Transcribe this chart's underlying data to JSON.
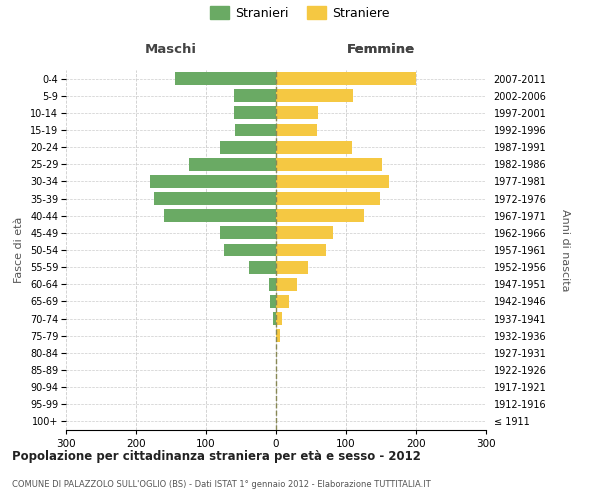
{
  "age_groups": [
    "100+",
    "95-99",
    "90-94",
    "85-89",
    "80-84",
    "75-79",
    "70-74",
    "65-69",
    "60-64",
    "55-59",
    "50-54",
    "45-49",
    "40-44",
    "35-39",
    "30-34",
    "25-29",
    "20-24",
    "15-19",
    "10-14",
    "5-9",
    "0-4"
  ],
  "birth_years": [
    "≤ 1911",
    "1912-1916",
    "1917-1921",
    "1922-1926",
    "1927-1931",
    "1932-1936",
    "1937-1941",
    "1942-1946",
    "1947-1951",
    "1952-1956",
    "1957-1961",
    "1962-1966",
    "1967-1971",
    "1972-1976",
    "1977-1981",
    "1982-1986",
    "1987-1991",
    "1992-1996",
    "1997-2001",
    "2002-2006",
    "2007-2011"
  ],
  "males": [
    0,
    0,
    0,
    0,
    0,
    0,
    4,
    8,
    10,
    38,
    75,
    80,
    160,
    175,
    180,
    125,
    80,
    58,
    60,
    60,
    145
  ],
  "females": [
    0,
    0,
    0,
    0,
    0,
    5,
    8,
    18,
    30,
    45,
    72,
    82,
    125,
    148,
    162,
    152,
    108,
    58,
    60,
    110,
    200
  ],
  "male_color": "#6aaa64",
  "female_color": "#f5c842",
  "title": "Popolazione per cittadinanza straniera per età e sesso - 2012",
  "subtitle": "COMUNE DI PALAZZOLO SULL'OGLIO (BS) - Dati ISTAT 1° gennaio 2012 - Elaborazione TUTTITALIA.IT",
  "label_maschi": "Maschi",
  "label_femmine": "Femmine",
  "ylabel_left": "Fasce di età",
  "ylabel_right": "Anni di nascita",
  "legend_male": "Stranieri",
  "legend_female": "Straniere",
  "xlim": 300,
  "background_color": "#ffffff",
  "grid_color": "#cccccc",
  "bar_height": 0.75
}
